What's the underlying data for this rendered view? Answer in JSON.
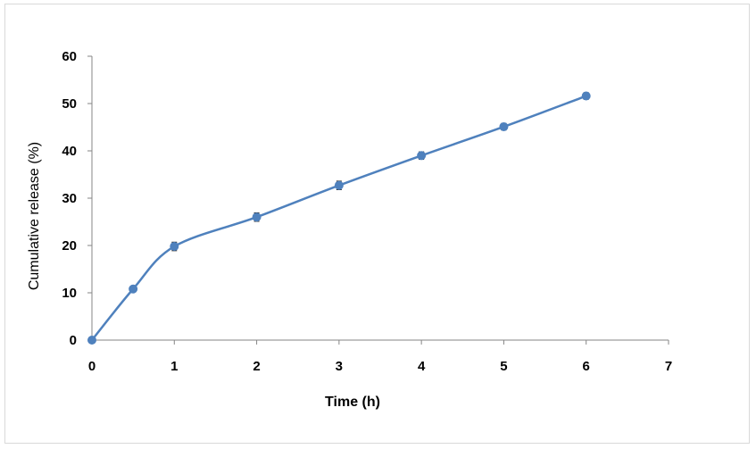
{
  "chart_data": {
    "type": "scatter",
    "title": "",
    "xlabel": "Time (h)",
    "ylabel": "Cumulative release (%)",
    "xlim": [
      0,
      7
    ],
    "ylim": [
      0,
      60
    ],
    "x_ticks": [
      0,
      1,
      2,
      3,
      4,
      5,
      6,
      7
    ],
    "y_ticks": [
      0,
      10,
      20,
      30,
      40,
      50,
      60
    ],
    "grid": false,
    "legend": "none",
    "smoothed_line": true,
    "error_bars": true,
    "series": [
      {
        "color": "#4f81bd",
        "x": [
          0,
          0.5,
          1,
          2,
          3,
          4,
          5,
          6
        ],
        "y": [
          0,
          10.8,
          19.8,
          26.0,
          32.7,
          39.0,
          45.1,
          51.6
        ],
        "error": [
          0,
          0.5,
          0.9,
          0.9,
          0.9,
          0.8,
          0.7,
          0.7
        ]
      }
    ]
  }
}
